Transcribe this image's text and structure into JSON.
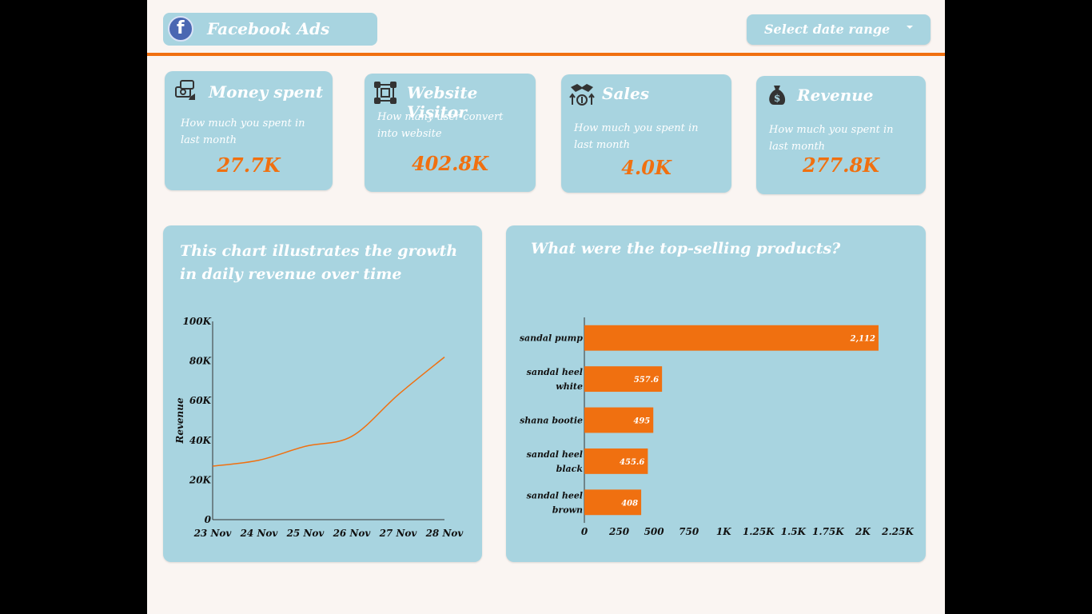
{
  "header": {
    "title": "Facebook Ads",
    "date_range_label": "Select date range"
  },
  "kpis": [
    {
      "title": "Money spent",
      "subtitle": "How much you spent in last month",
      "value": "27.7K",
      "icon": "money-icon"
    },
    {
      "title": "Website Visitor",
      "subtitle": "How many user convert into website",
      "value": "402.8K",
      "icon": "network-icon"
    },
    {
      "title": "Sales",
      "subtitle": "How much you spent in last month",
      "value": "4.0K",
      "icon": "handshake-icon"
    },
    {
      "title": "Revenue",
      "subtitle": "How much you spent in last month",
      "value": "277.8K",
      "icon": "money-bag-icon"
    }
  ],
  "colors": {
    "card": "#a8d4e0",
    "accent": "#f07010",
    "background": "#faf5f2"
  },
  "chart_data": [
    {
      "type": "line",
      "title": "This chart illustrates the growth in daily revenue over time",
      "xlabel": "",
      "ylabel": "Revenue",
      "x": [
        "23 Nov",
        "24 Nov",
        "25 Nov",
        "26 Nov",
        "27 Nov",
        "28 Nov"
      ],
      "series": [
        {
          "values": [
            27000,
            30000,
            37000,
            42000,
            63000,
            82000
          ]
        }
      ],
      "y_ticks": [
        "0",
        "20K",
        "40K",
        "60K",
        "80K",
        "100K"
      ],
      "ylim": [
        0,
        100000
      ],
      "grid": false
    },
    {
      "type": "bar",
      "orientation": "horizontal",
      "title": "What were the top-selling products?",
      "categories": [
        "sandal pump",
        "sandal heel white",
        "shana bootie",
        "sandal heel black",
        "sandal heel brown"
      ],
      "values": [
        2112,
        557.6,
        495,
        455.6,
        408
      ],
      "value_labels": [
        "2,112",
        "557.6",
        "495",
        "455.6",
        "408"
      ],
      "x_ticks": [
        "0",
        "250",
        "500",
        "750",
        "1K",
        "1.25K",
        "1.5K",
        "1.75K",
        "2K",
        "2.25K"
      ],
      "xlim": [
        0,
        2250
      ],
      "grid": false
    }
  ]
}
